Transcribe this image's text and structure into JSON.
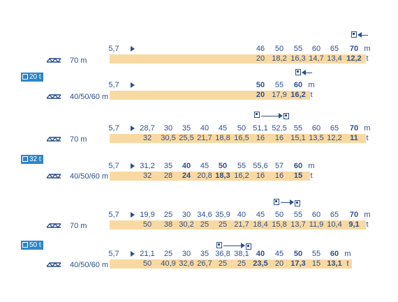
{
  "badges": {
    "b1": "20 t",
    "b2": "32 t",
    "b3": "50 t"
  },
  "jibs": {
    "j70": "70 m",
    "jmix": "40/50/60 m"
  },
  "units": {
    "m": "m",
    "t": "t"
  },
  "start": "5,7",
  "rows": {
    "r1": {
      "d": [
        "46",
        "50",
        "55",
        "60",
        "65",
        "70"
      ],
      "l": [
        "20",
        "18,2",
        "16,3",
        "14,7",
        "13,4",
        "12,2"
      ]
    },
    "r2": {
      "d": [
        "50",
        "55",
        "60"
      ],
      "l": [
        "20",
        "17,9",
        "16,2"
      ]
    },
    "r3": {
      "d": [
        "28,7",
        "30",
        "35",
        "40",
        "45",
        "50",
        "51,1",
        "52,5",
        "55",
        "60",
        "65",
        "70"
      ],
      "l": [
        "32",
        "30,5",
        "25,5",
        "21,7",
        "18,8",
        "16,5",
        "16",
        "16",
        "15,1",
        "13,5",
        "12,2",
        "11"
      ]
    },
    "r4": {
      "d": [
        "31,2",
        "35",
        "40",
        "45",
        "50",
        "55",
        "55,6",
        "57",
        "60"
      ],
      "l": [
        "32",
        "28",
        "24",
        "20,8",
        "18,3",
        "16,2",
        "16",
        "16",
        "15"
      ]
    },
    "r5": {
      "d": [
        "19,9",
        "25",
        "30",
        "34,6",
        "35,9",
        "40",
        "45",
        "50",
        "55",
        "60",
        "65",
        "70"
      ],
      "l": [
        "50",
        "38",
        "30,2",
        "25",
        "25",
        "21,7",
        "18,4",
        "15,8",
        "13,7",
        "11,9",
        "10,4",
        "9,1"
      ]
    },
    "r6": {
      "d": [
        "21,1",
        "25",
        "30",
        "35",
        "36,8",
        "38,1",
        "40",
        "45",
        "50",
        "55",
        "60"
      ],
      "l": [
        "50",
        "40,9",
        "32,6",
        "26,7",
        "25",
        "25",
        "23,5",
        "20",
        "17,3",
        "15",
        "13,1"
      ]
    }
  },
  "icons": {
    "mast": "tower-crane-jib-icon",
    "trolley": "trolley-hook-icon",
    "arrow": "arrow-right-icon"
  },
  "colors": {
    "text": "#2d4f8c",
    "bar": "#f9d9a2",
    "badge": "#2e86c8"
  }
}
